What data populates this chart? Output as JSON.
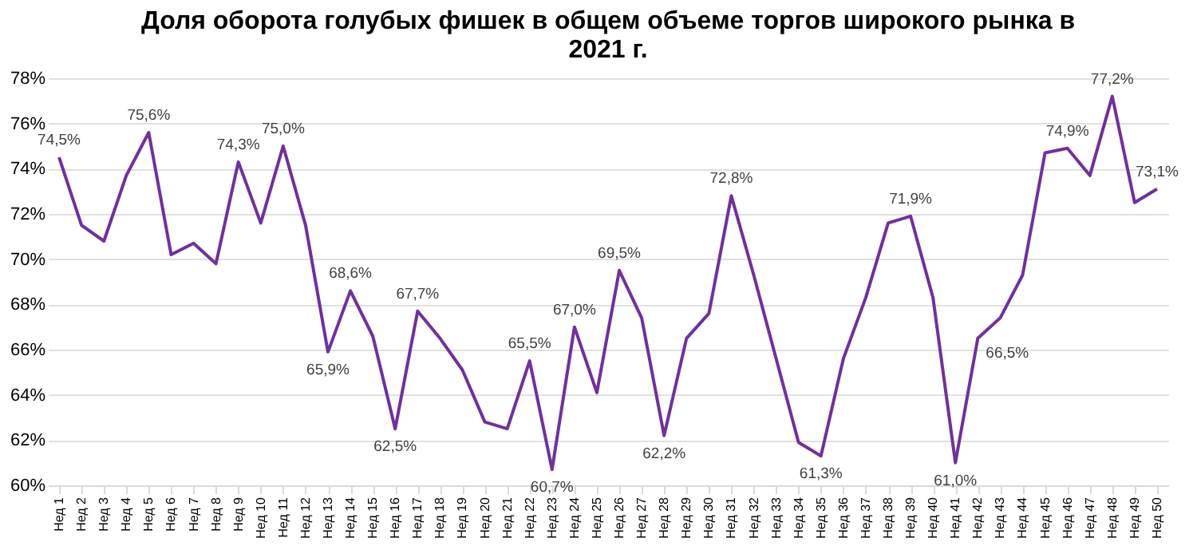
{
  "chart_data": {
    "type": "line",
    "title": "Доля оборота голубых фишек в общем объеме торгов широкого рынка в 2021 г.",
    "categories": [
      "Нед 1",
      "Нед 2",
      "Нед 3",
      "Нед 4",
      "Нед 5",
      "Нед 6",
      "Нед 7",
      "Нед 8",
      "Нед 9",
      "Нед 10",
      "Нед 11",
      "Нед 12",
      "Нед 13",
      "Нед 14",
      "Нед 15",
      "Нед 16",
      "Нед 17",
      "Нед 18",
      "Нед 19",
      "Нед 20",
      "Нед 21",
      "Нед 22",
      "Нед 23",
      "Нед 24",
      "Нед 25",
      "Нед 26",
      "Нед 27",
      "Нед 28",
      "Нед 29",
      "Нед 30",
      "Нед 31",
      "Нед 32",
      "Нед 33",
      "Нед 34",
      "Нед 35",
      "Нед 36",
      "Нед 37",
      "Нед 38",
      "Нед 39",
      "Нед 40",
      "Нед 41",
      "Нед 42",
      "Нед 43",
      "Нед 44",
      "Нед 45",
      "Нед 46",
      "Нед 47",
      "Нед 48",
      "Нед 49",
      "Нед 50"
    ],
    "series": [
      {
        "color": "#7030a0",
        "values": [
          74.5,
          71.5,
          70.8,
          73.7,
          75.6,
          70.2,
          70.7,
          69.8,
          74.3,
          71.6,
          75.0,
          71.5,
          65.9,
          68.6,
          66.6,
          62.5,
          67.7,
          66.5,
          65.1,
          62.8,
          62.5,
          65.5,
          60.7,
          67.0,
          64.1,
          69.5,
          67.4,
          62.2,
          66.5,
          67.6,
          72.8,
          69.3,
          65.6,
          61.9,
          61.3,
          65.6,
          68.3,
          71.6,
          71.9,
          68.3,
          61.0,
          66.5,
          67.4,
          69.3,
          74.7,
          74.9,
          73.7,
          77.2,
          72.5,
          73.1
        ],
        "value_labels": [
          "74,5%",
          null,
          null,
          null,
          "75,6%",
          null,
          null,
          null,
          "74,3%",
          null,
          "75,0%",
          null,
          "65,9%",
          "68,6%",
          null,
          "62,5%",
          "67,7%",
          null,
          null,
          null,
          null,
          "65,5%",
          "60,7%",
          "67,0%",
          null,
          "69,5%",
          null,
          "62,2%",
          null,
          null,
          "72,8%",
          null,
          null,
          null,
          "61,3%",
          null,
          null,
          null,
          "71,9%",
          null,
          "61,0%",
          "66,5%",
          null,
          null,
          null,
          "74,9%",
          null,
          "77,2%",
          null,
          "73,1%"
        ]
      }
    ],
    "ylim": [
      60,
      78
    ],
    "yticks": [
      {
        "value": 60,
        "label": "60%"
      },
      {
        "value": 62,
        "label": "62%"
      },
      {
        "value": 64,
        "label": "64%"
      },
      {
        "value": 66,
        "label": "66%"
      },
      {
        "value": 68,
        "label": "68%"
      },
      {
        "value": 70,
        "label": "70%"
      },
      {
        "value": 72,
        "label": "72%"
      },
      {
        "value": 74,
        "label": "74%"
      },
      {
        "value": 76,
        "label": "76%"
      },
      {
        "value": 78,
        "label": "78%"
      }
    ],
    "grid": "y",
    "marker": "none",
    "line_style": "solid",
    "legend": false
  }
}
